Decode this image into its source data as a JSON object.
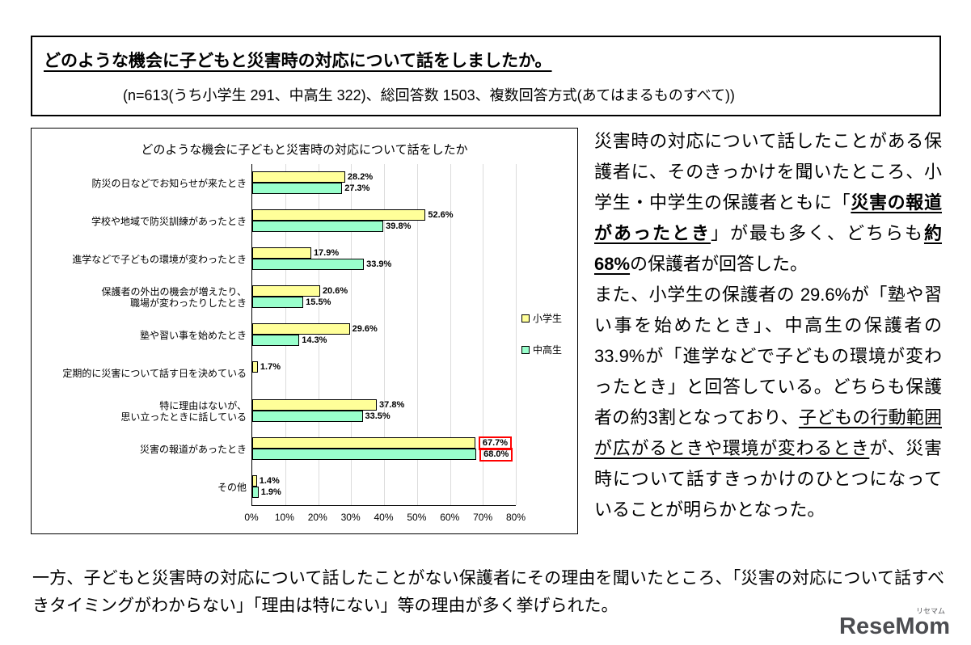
{
  "header": {
    "title": "どのような機会に子どもと災害時の対応について話をしましたか。",
    "subtitle": "(n=613(うち小学生 291、中高生 322)、総回答数 1503、複数回答方式(あてはまるものすべて))"
  },
  "chart_data": {
    "type": "bar",
    "orientation": "horizontal",
    "title": "どのような機会に子どもと災害時の対応について話をしたか",
    "categories": [
      "防災の日などでお知らせが来たとき",
      "学校や地域で防災訓練があったとき",
      "進学などで子どもの環境が変わったとき",
      "保護者の外出の機会が増えたり、\n職場が変わったりしたとき",
      "塾や習い事を始めたとき",
      "定期的に災害について話す日を決めている",
      "特に理由はないが、\n思い立ったときに話している",
      "災害の報道があったとき",
      "その他"
    ],
    "series": [
      {
        "name": "小学生",
        "color": "#FFFF99",
        "values": [
          28.2,
          52.6,
          17.9,
          20.6,
          29.6,
          1.7,
          37.8,
          67.7,
          1.4
        ]
      },
      {
        "name": "中高生",
        "color": "#99FFCC",
        "values": [
          27.3,
          39.8,
          33.9,
          15.5,
          14.3,
          null,
          33.5,
          68.0,
          1.9
        ]
      }
    ],
    "xlim": [
      0,
      80
    ],
    "x_ticks": [
      "0%",
      "10%",
      "20%",
      "30%",
      "40%",
      "50%",
      "60%",
      "70%",
      "80%"
    ],
    "value_suffix": "%",
    "highlight_index": 7,
    "highlight_color": "#FF0000",
    "grid": true,
    "legend_position": "right"
  },
  "analysis": {
    "paragraphs": [
      [
        {
          "t": "災害時の対応について話したことがある保護者に、そのきっかけを聞いたところ、小学生・中学生の保護者ともに「"
        },
        {
          "t": "災害の報道があったとき",
          "u": true,
          "b": true
        },
        {
          "t": "」が最も多く、どちらも"
        },
        {
          "t": "約68%",
          "u": true,
          "b": true
        },
        {
          "t": "の保護者が回答した。"
        }
      ],
      [
        {
          "t": "また、小学生の保護者の 29.6%が「塾や習い事を始めたとき」、中高生の保護者の 33.9%が「進学などで子どもの環境が変わったとき」と回答している。どちらも保護者の約3割となっており、"
        },
        {
          "t": "子どもの行動範囲が広がるときや環境が変わるとき",
          "u": true
        },
        {
          "t": "が、災害時について話すきっかけのひとつになっていることが明らかとなった。"
        }
      ]
    ]
  },
  "footer": {
    "text": "一方、子どもと災害時の対応について話したことがない保護者にその理由を聞いたところ、「災害の対応について話すべきタイミングがわからない」「理由は特にない」等の理由が多く挙げられた。"
  },
  "logo": {
    "text": "ReseMom",
    "ruby": "リセマム"
  }
}
